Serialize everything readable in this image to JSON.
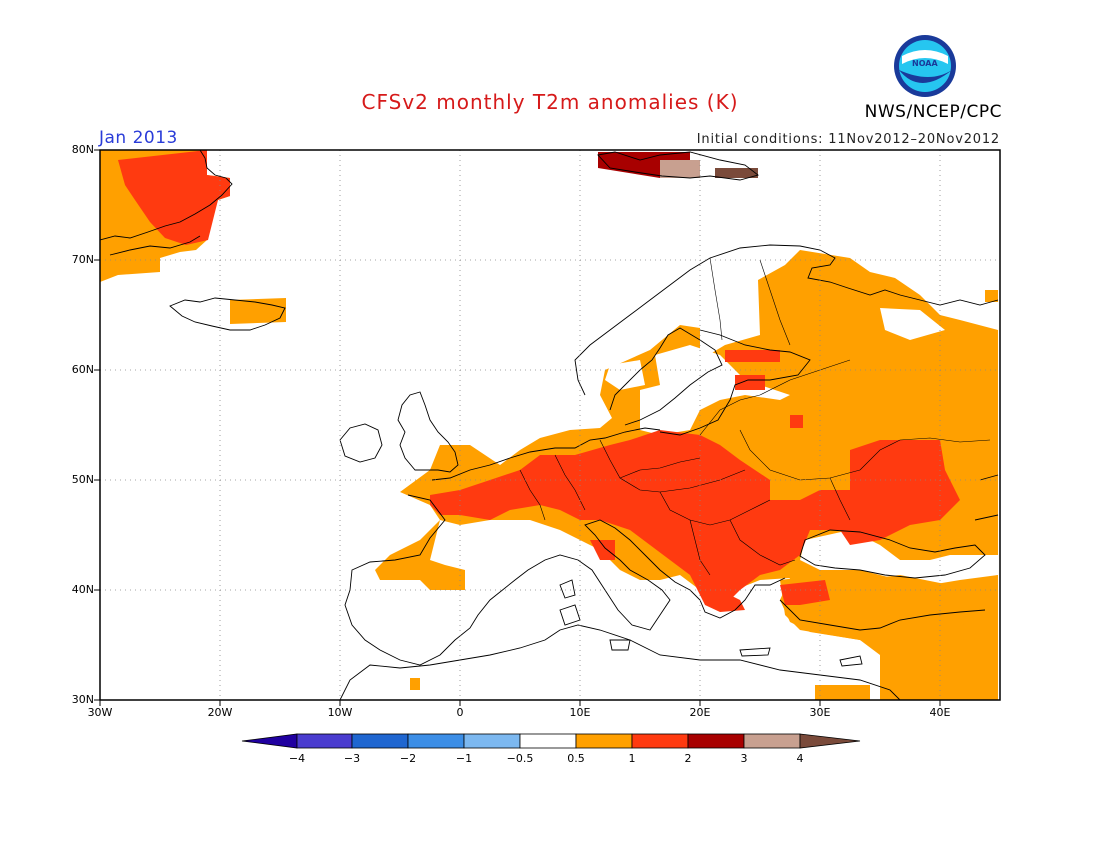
{
  "header": {
    "title": "CFSv2 monthly T2m anomalies (K)",
    "agency": "NWS/NCEP/CPC",
    "logo_text": "NOAA",
    "period": "Jan 2013",
    "initial_conditions": "Initial conditions: 11Nov2012–20Nov2012"
  },
  "map": {
    "region": "Europe",
    "lon_range": [
      -30,
      45
    ],
    "lat_range": [
      30,
      80
    ],
    "lat_labels": [
      "80N",
      "70N",
      "60N",
      "50N",
      "40N",
      "30N"
    ],
    "lon_labels": [
      "30W",
      "20W",
      "10W",
      "0",
      "10E",
      "20E",
      "30E",
      "40E"
    ]
  },
  "colorbar": {
    "labels": [
      "−4",
      "−3",
      "−2",
      "−1",
      "−0.5",
      "0.5",
      "1",
      "2",
      "3",
      "4"
    ],
    "colors": [
      "#2000a0",
      "#4a3ccf",
      "#1f66d0",
      "#3c8ee6",
      "#7cb8f0",
      "#ffffff",
      "#ffa000",
      "#ff3a10",
      "#a80000",
      "#c8a090",
      "#7a4a3a"
    ]
  },
  "legend_colors": {
    "0.5_to_1": "#ffa000",
    "1_to_2": "#ff3a10",
    "2_to_3": "#a80000",
    "3_to_4": "#c8a090",
    "above_4": "#7a4a3a"
  }
}
